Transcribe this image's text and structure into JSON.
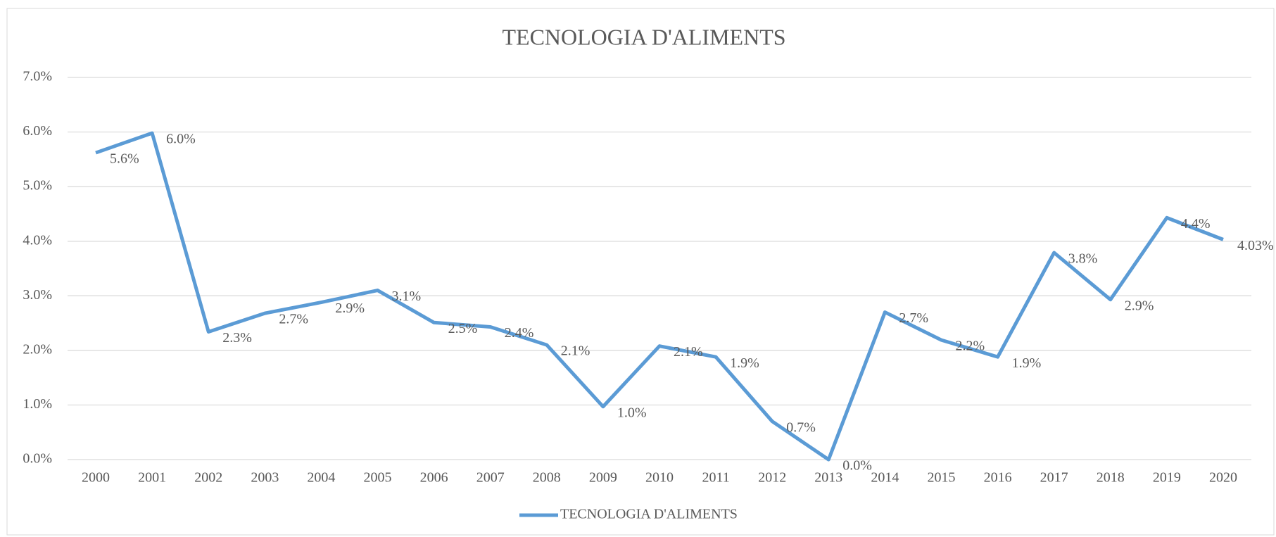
{
  "chart_data": {
    "type": "line",
    "title": "TECNOLOGIA D'ALIMENTS",
    "categories": [
      "2000",
      "2001",
      "2002",
      "2003",
      "2004",
      "2005",
      "2006",
      "2007",
      "2008",
      "2009",
      "2010",
      "2011",
      "2012",
      "2013",
      "2014",
      "2015",
      "2016",
      "2017",
      "2018",
      "2019",
      "2020"
    ],
    "series": [
      {
        "name": "TECNOLOGIA D'ALIMENTS",
        "color": "#5b9bd5",
        "values": [
          5.62,
          5.98,
          2.34,
          2.68,
          2.88,
          3.1,
          2.51,
          2.43,
          2.1,
          0.97,
          2.08,
          1.88,
          0.7,
          0.0,
          2.7,
          2.19,
          1.88,
          3.79,
          2.93,
          4.43,
          4.03
        ],
        "value_labels": [
          "5.6%",
          "6.0%",
          "2.3%",
          "2.7%",
          "2.9%",
          "3.1%",
          "2.5%",
          "2.4%",
          "2.1%",
          "1.0%",
          "2.1%",
          "1.9%",
          "0.7%",
          "0.0%",
          "2.7%",
          "2.2%",
          "1.9%",
          "3.8%",
          "2.9%",
          "4.4%",
          "4.03%"
        ]
      }
    ],
    "ylim": [
      0,
      7
    ],
    "yticks": [
      {
        "value": 0,
        "label": "0.0%"
      },
      {
        "value": 1,
        "label": "1.0%"
      },
      {
        "value": 2,
        "label": "2.0%"
      },
      {
        "value": 3,
        "label": "3.0%"
      },
      {
        "value": 4,
        "label": "4.0%"
      },
      {
        "value": 5,
        "label": "5.0%"
      },
      {
        "value": 6,
        "label": "6.0%"
      },
      {
        "value": 7,
        "label": "7.0%"
      }
    ],
    "grid": true,
    "legend": "bottom"
  }
}
